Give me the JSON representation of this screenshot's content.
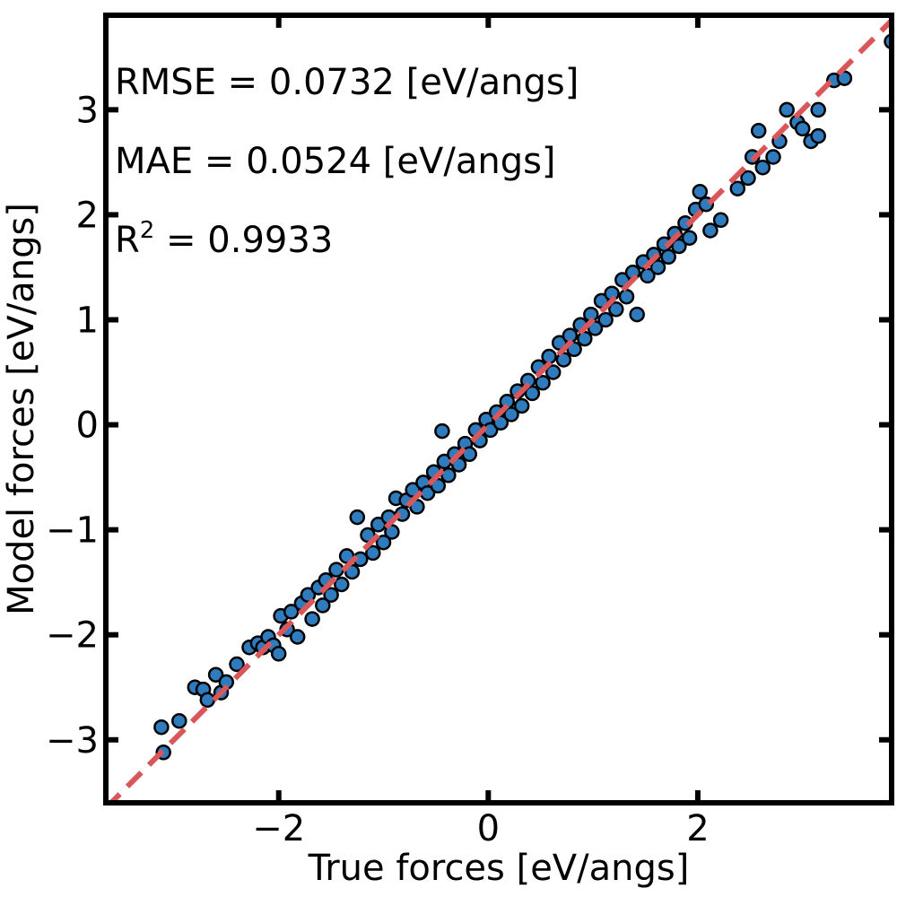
{
  "chart_data": {
    "type": "scatter",
    "title": "",
    "xlabel": "True forces [eV/angs]",
    "ylabel": "Model forces [eV/angs]",
    "xlim": [
      -3.65,
      3.85
    ],
    "ylim": [
      -3.6,
      3.9
    ],
    "xticks": [
      -2,
      0,
      2
    ],
    "xtick_labels": [
      "−2",
      "0",
      "2"
    ],
    "yticks": [
      -3,
      -2,
      -1,
      0,
      1,
      2,
      3
    ],
    "ytick_labels": [
      "−3",
      "−2",
      "−1",
      "0",
      "1",
      "2",
      "3"
    ],
    "grid": false,
    "annotations": {
      "rmse": "RMSE = 0.0732 [eV/angs]",
      "mae": "MAE = 0.0524 [eV/angs]",
      "r2_prefix": "R",
      "r2_sup": "2",
      "r2_rest": " = 0.9933"
    },
    "reference_line": {
      "x": [
        -3.65,
        3.85
      ],
      "y": [
        -3.65,
        3.85
      ],
      "color": "#d9575a",
      "style": "dashed"
    },
    "marker_color": "#2e7bbd",
    "marker_edge": "#000000",
    "points": [
      {
        "x": -3.12,
        "y": -2.88
      },
      {
        "x": -3.1,
        "y": -3.12
      },
      {
        "x": -2.95,
        "y": -2.82
      },
      {
        "x": -2.8,
        "y": -2.5
      },
      {
        "x": -2.72,
        "y": -2.52
      },
      {
        "x": -2.68,
        "y": -2.62
      },
      {
        "x": -2.6,
        "y": -2.38
      },
      {
        "x": -2.55,
        "y": -2.55
      },
      {
        "x": -2.5,
        "y": -2.45
      },
      {
        "x": -2.4,
        "y": -2.28
      },
      {
        "x": -2.28,
        "y": -2.12
      },
      {
        "x": -2.2,
        "y": -2.08
      },
      {
        "x": -2.15,
        "y": -2.12
      },
      {
        "x": -2.1,
        "y": -2.02
      },
      {
        "x": -2.05,
        "y": -2.1
      },
      {
        "x": -2.0,
        "y": -2.18
      },
      {
        "x": -1.98,
        "y": -1.82
      },
      {
        "x": -1.92,
        "y": -1.95
      },
      {
        "x": -1.88,
        "y": -1.78
      },
      {
        "x": -1.82,
        "y": -2.02
      },
      {
        "x": -1.78,
        "y": -1.7
      },
      {
        "x": -1.72,
        "y": -1.62
      },
      {
        "x": -1.68,
        "y": -1.85
      },
      {
        "x": -1.62,
        "y": -1.55
      },
      {
        "x": -1.58,
        "y": -1.72
      },
      {
        "x": -1.55,
        "y": -1.48
      },
      {
        "x": -1.5,
        "y": -1.62
      },
      {
        "x": -1.45,
        "y": -1.38
      },
      {
        "x": -1.4,
        "y": -1.52
      },
      {
        "x": -1.35,
        "y": -1.25
      },
      {
        "x": -1.3,
        "y": -1.4
      },
      {
        "x": -1.25,
        "y": -0.88
      },
      {
        "x": -1.22,
        "y": -1.28
      },
      {
        "x": -1.15,
        "y": -1.05
      },
      {
        "x": -1.1,
        "y": -1.22
      },
      {
        "x": -1.05,
        "y": -0.95
      },
      {
        "x": -1.0,
        "y": -1.12
      },
      {
        "x": -0.95,
        "y": -0.88
      },
      {
        "x": -0.92,
        "y": -1.02
      },
      {
        "x": -0.88,
        "y": -0.7
      },
      {
        "x": -0.82,
        "y": -0.85
      },
      {
        "x": -0.78,
        "y": -0.72
      },
      {
        "x": -0.72,
        "y": -0.62
      },
      {
        "x": -0.68,
        "y": -0.78
      },
      {
        "x": -0.62,
        "y": -0.55
      },
      {
        "x": -0.58,
        "y": -0.65
      },
      {
        "x": -0.52,
        "y": -0.45
      },
      {
        "x": -0.48,
        "y": -0.58
      },
      {
        "x": -0.44,
        "y": -0.06
      },
      {
        "x": -0.42,
        "y": -0.35
      },
      {
        "x": -0.38,
        "y": -0.48
      },
      {
        "x": -0.32,
        "y": -0.28
      },
      {
        "x": -0.28,
        "y": -0.38
      },
      {
        "x": -0.22,
        "y": -0.18
      },
      {
        "x": -0.18,
        "y": -0.28
      },
      {
        "x": -0.12,
        "y": -0.05
      },
      {
        "x": -0.08,
        "y": -0.15
      },
      {
        "x": -0.02,
        "y": 0.05
      },
      {
        "x": 0.02,
        "y": -0.05
      },
      {
        "x": 0.08,
        "y": 0.12
      },
      {
        "x": 0.12,
        "y": 0.02
      },
      {
        "x": 0.18,
        "y": 0.22
      },
      {
        "x": 0.22,
        "y": 0.1
      },
      {
        "x": 0.28,
        "y": 0.32
      },
      {
        "x": 0.32,
        "y": 0.18
      },
      {
        "x": 0.38,
        "y": 0.42
      },
      {
        "x": 0.42,
        "y": 0.3
      },
      {
        "x": 0.48,
        "y": 0.55
      },
      {
        "x": 0.52,
        "y": 0.4
      },
      {
        "x": 0.58,
        "y": 0.65
      },
      {
        "x": 0.62,
        "y": 0.5
      },
      {
        "x": 0.68,
        "y": 0.78
      },
      {
        "x": 0.72,
        "y": 0.62
      },
      {
        "x": 0.78,
        "y": 0.85
      },
      {
        "x": 0.82,
        "y": 0.72
      },
      {
        "x": 0.88,
        "y": 0.95
      },
      {
        "x": 0.92,
        "y": 0.82
      },
      {
        "x": 0.98,
        "y": 1.05
      },
      {
        "x": 1.02,
        "y": 0.92
      },
      {
        "x": 1.08,
        "y": 1.18
      },
      {
        "x": 1.12,
        "y": 1.0
      },
      {
        "x": 1.18,
        "y": 1.25
      },
      {
        "x": 1.22,
        "y": 1.1
      },
      {
        "x": 1.28,
        "y": 1.38
      },
      {
        "x": 1.32,
        "y": 1.22
      },
      {
        "x": 1.38,
        "y": 1.45
      },
      {
        "x": 1.42,
        "y": 1.05
      },
      {
        "x": 1.48,
        "y": 1.55
      },
      {
        "x": 1.52,
        "y": 1.42
      },
      {
        "x": 1.58,
        "y": 1.62
      },
      {
        "x": 1.62,
        "y": 1.5
      },
      {
        "x": 1.68,
        "y": 1.72
      },
      {
        "x": 1.72,
        "y": 1.6
      },
      {
        "x": 1.78,
        "y": 1.82
      },
      {
        "x": 1.82,
        "y": 1.7
      },
      {
        "x": 1.88,
        "y": 1.92
      },
      {
        "x": 1.92,
        "y": 1.78
      },
      {
        "x": 1.98,
        "y": 2.05
      },
      {
        "x": 2.02,
        "y": 2.22
      },
      {
        "x": 2.08,
        "y": 2.1
      },
      {
        "x": 2.12,
        "y": 1.85
      },
      {
        "x": 2.22,
        "y": 1.95
      },
      {
        "x": 2.38,
        "y": 2.25
      },
      {
        "x": 2.48,
        "y": 2.35
      },
      {
        "x": 2.52,
        "y": 2.55
      },
      {
        "x": 2.58,
        "y": 2.8
      },
      {
        "x": 2.62,
        "y": 2.45
      },
      {
        "x": 2.72,
        "y": 2.55
      },
      {
        "x": 2.78,
        "y": 2.7
      },
      {
        "x": 2.85,
        "y": 3.0
      },
      {
        "x": 2.95,
        "y": 2.88
      },
      {
        "x": 3.0,
        "y": 2.82
      },
      {
        "x": 3.08,
        "y": 2.7
      },
      {
        "x": 3.15,
        "y": 2.75
      },
      {
        "x": 3.15,
        "y": 3.0
      },
      {
        "x": 3.3,
        "y": 3.28
      },
      {
        "x": 3.4,
        "y": 3.3
      },
      {
        "x": 3.85,
        "y": 3.65
      }
    ]
  }
}
